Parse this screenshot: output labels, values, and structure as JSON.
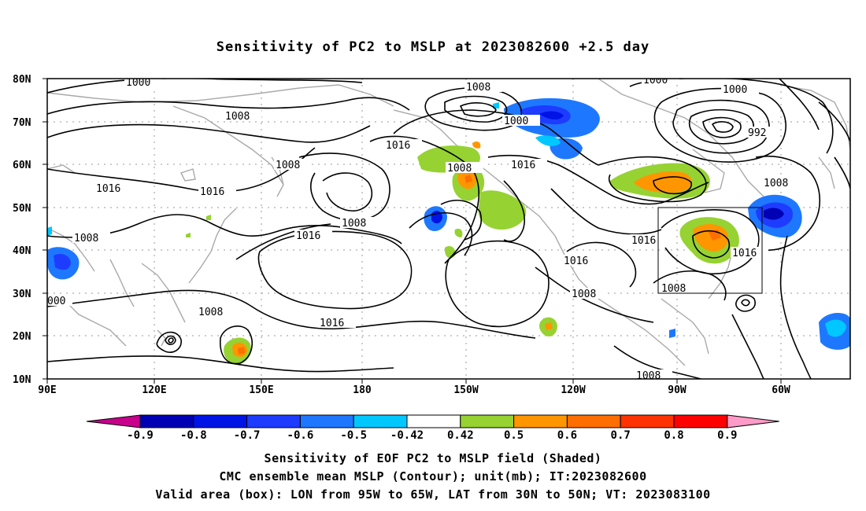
{
  "title": "Sensitivity of PC2 to MSLP at 2023082600 +2.5 day",
  "map": {
    "lat_ticks": [
      "80N",
      "70N",
      "60N",
      "50N",
      "40N",
      "30N",
      "20N",
      "10N"
    ],
    "lon_ticks": [
      "90E",
      "120E",
      "150E",
      "180",
      "150W",
      "120W",
      "90W",
      "60W"
    ],
    "lon_range": [
      "90E",
      "30W"
    ],
    "lat_range": [
      "10N",
      "80N"
    ],
    "valid_box": {
      "lon_from": "95W",
      "lon_to": "65W",
      "lat_from": "30N",
      "lat_to": "50N"
    },
    "contour_labels": [
      "1000",
      "1008",
      "1016",
      "1008",
      "1016",
      "1008",
      "1016",
      "1008",
      "1008",
      "1000",
      "1016",
      "1016",
      "1008",
      "1000",
      "1008",
      "992",
      "1000",
      "1008",
      "1016",
      "1016",
      "1016",
      "1008",
      "1008",
      "1016",
      "1008",
      "1008",
      "000"
    ],
    "colors": {
      "land_outline": "#a9a9a9",
      "contour": "#000000",
      "grid": "#9a9a9a"
    }
  },
  "colorbar": {
    "ticks": [
      "-0.9",
      "-0.8",
      "-0.7",
      "-0.6",
      "-0.5",
      "-0.42",
      "0.42",
      "0.5",
      "0.6",
      "0.7",
      "0.8",
      "0.9"
    ],
    "colors": [
      "#c8008c",
      "#0000b4",
      "#0014e6",
      "#1e3cff",
      "#1e78ff",
      "#00c8ff",
      "#ffffff",
      "#96d232",
      "#ff9600",
      "#ff6e00",
      "#ff3200",
      "#ff0000",
      "#ff9bc8"
    ]
  },
  "captions": {
    "line1": "Sensitivity of EOF PC2 to MSLP field (Shaded)",
    "line2": "CMC ensemble mean MSLP (Contour); unit(mb); IT:2023082600",
    "line3": "Valid area (box): LON from 95W to 65W, LAT from 30N to 50N; VT: 2023083100"
  }
}
